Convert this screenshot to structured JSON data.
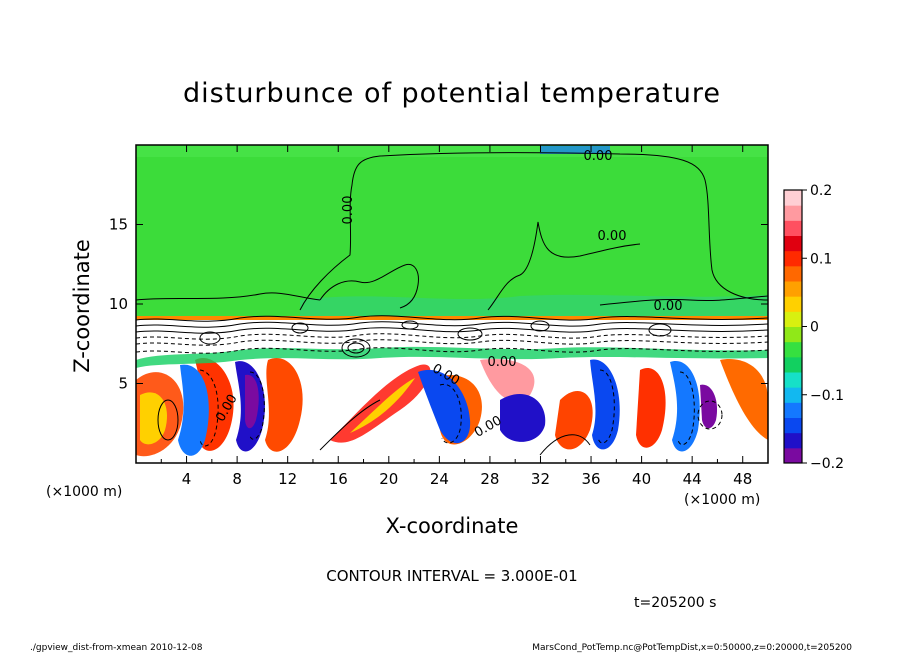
{
  "chart_data": {
    "type": "heatmap",
    "title": "disturbunce of potential temperature",
    "xlabel": "X-coordinate",
    "ylabel": "Z-coordinate",
    "x_unit_left": "(×1000 m)",
    "x_unit_right": "(×1000 m)",
    "xlim": [
      0,
      50
    ],
    "ylim": [
      0,
      20
    ],
    "x_ticks": [
      4,
      8,
      12,
      16,
      20,
      24,
      28,
      32,
      36,
      40,
      44,
      48
    ],
    "x_tick_labels": [
      "4",
      "8",
      "12",
      "16",
      "20",
      "24",
      "28",
      "32",
      "36",
      "40",
      "44",
      "48"
    ],
    "y_ticks": [
      5,
      10,
      15
    ],
    "y_tick_labels": [
      "5",
      "10",
      "15"
    ],
    "colorbar": {
      "range": [
        -0.2,
        0.2
      ],
      "ticks": [
        0.2,
        0.1,
        0,
        -0.1,
        -0.2
      ],
      "tick_labels": [
        "0.2",
        "0.1",
        "0",
        "−0.1",
        "−0.2"
      ],
      "colors": [
        "#7a0aa0",
        "#2010c8",
        "#0a48f0",
        "#1478ff",
        "#12b8f0",
        "#16e0c8",
        "#12d060",
        "#36e040",
        "#90e818",
        "#d8f010",
        "#ffd000",
        "#ffa000",
        "#ff6800",
        "#ff2a00",
        "#e00010",
        "#ff5060",
        "#ff9aa0",
        "#ffcfd4"
      ]
    },
    "contour_labels": [
      "0.00",
      "0.00",
      "0.00",
      "0.00",
      "0.00",
      "0.00",
      "0.00",
      "0.00"
    ],
    "contour_interval_text": "CONTOUR INTERVAL = 3.000E-01",
    "time_text": "t=205200 s"
  },
  "footer": {
    "left": "./gpview_dist-from-xmean  2010-12-08",
    "right": "MarsCond_PotTemp.nc@PotTempDist,x=0:50000,z=0:20000,t=205200"
  },
  "colors": {
    "upper_field": "#3cdc3a",
    "frame": "#000000"
  }
}
